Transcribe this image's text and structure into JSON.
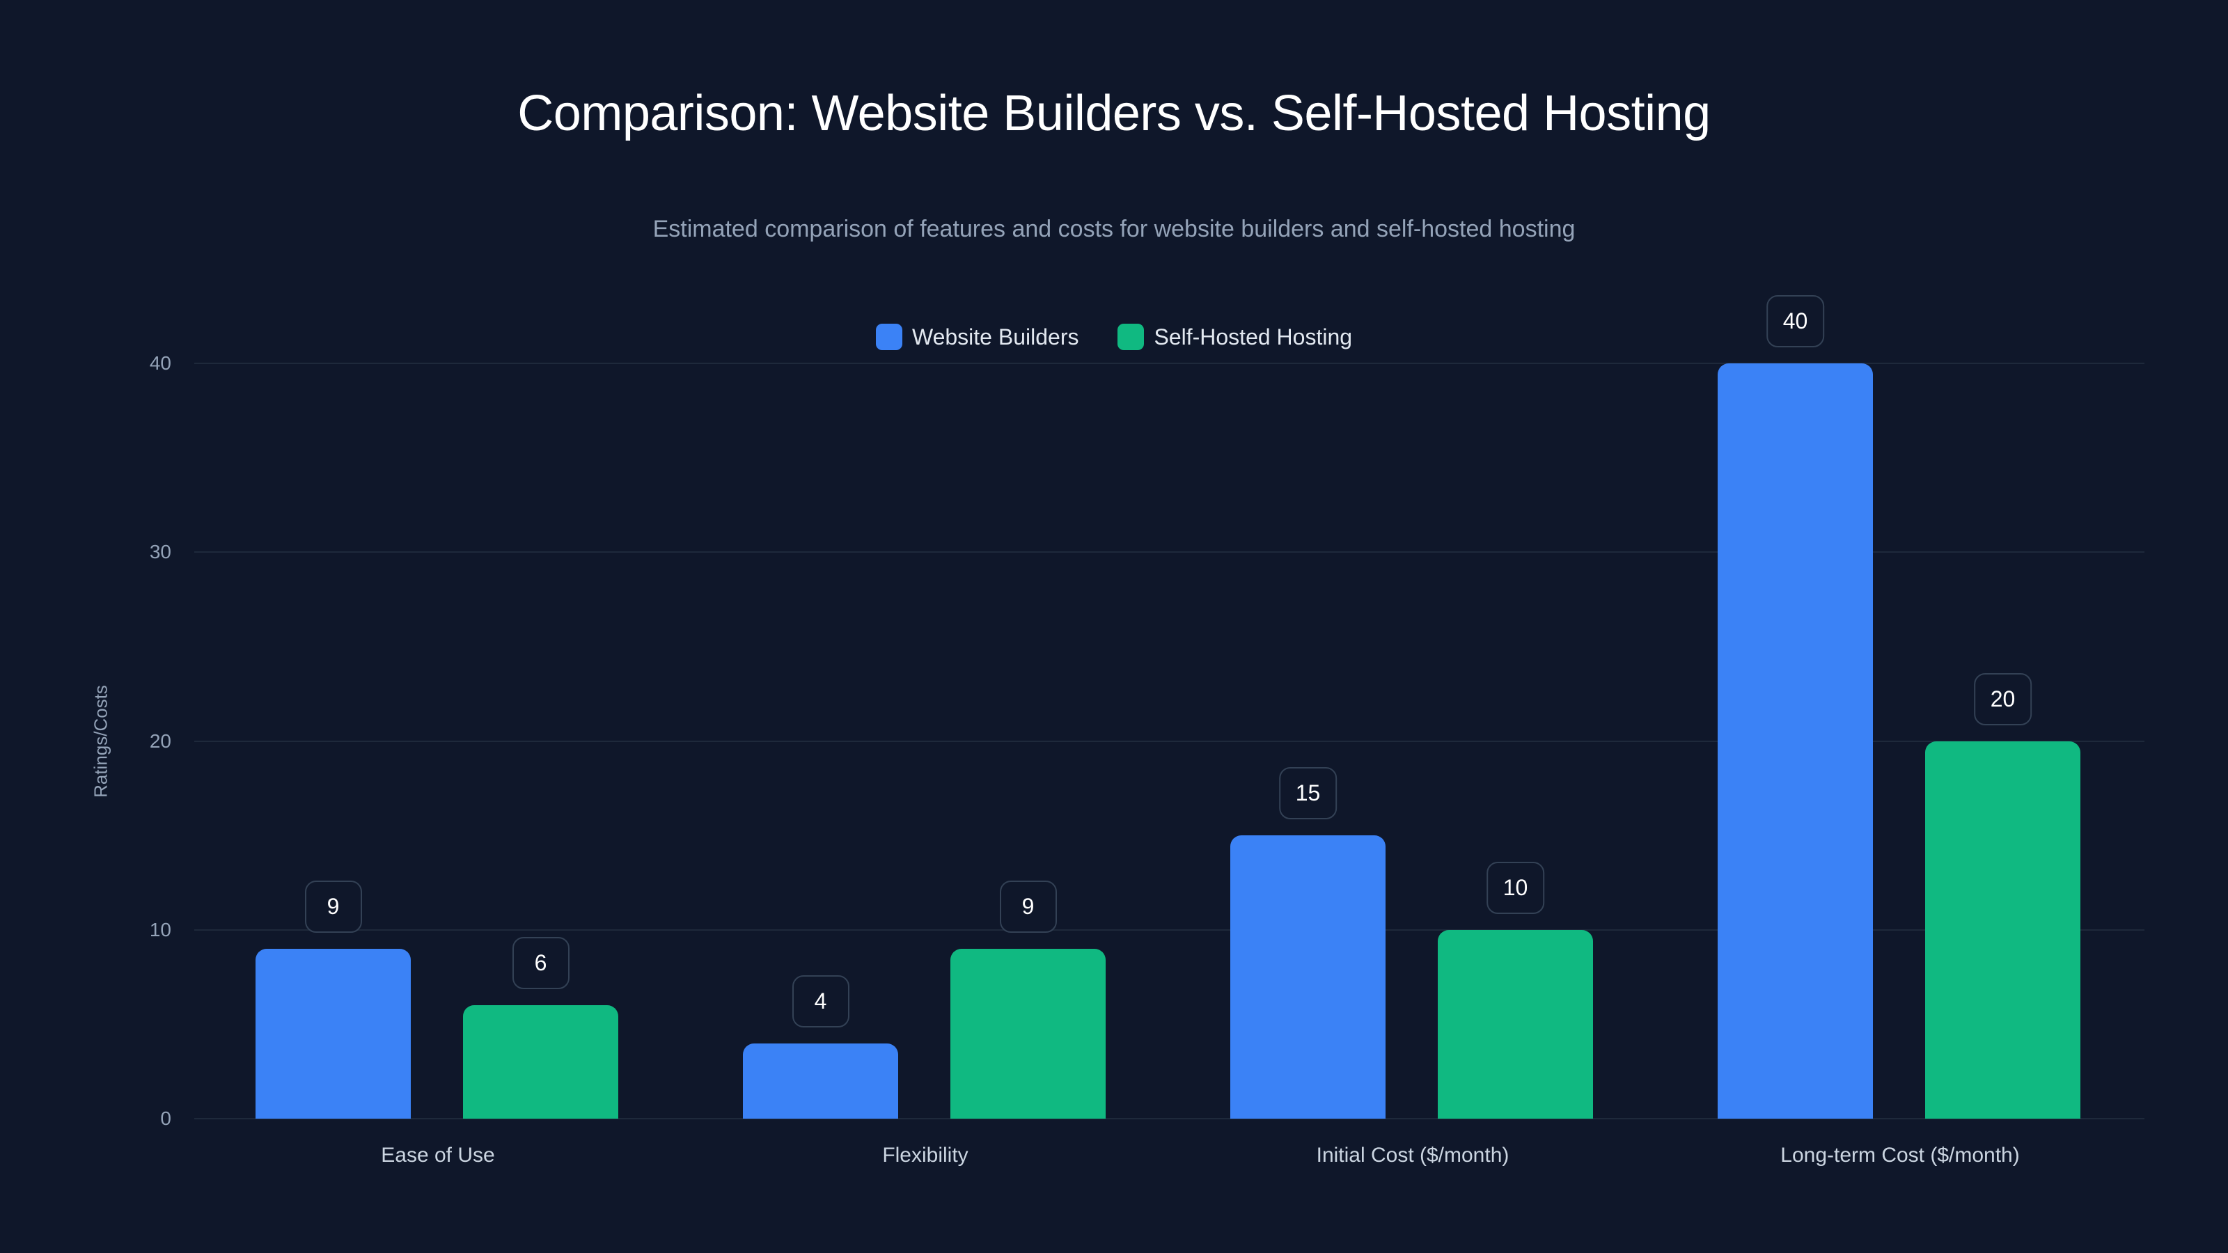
{
  "title": "Comparison: Website Builders vs. Self-Hosted Hosting",
  "subtitle": "Estimated comparison of features and costs for website builders and self-hosted hosting",
  "legend": [
    {
      "label": "Website Builders",
      "color": "#3b82f6"
    },
    {
      "label": "Self-Hosted Hosting",
      "color": "#10b981"
    }
  ],
  "colors": {
    "background": "#0f172a",
    "grid": "#1e293b",
    "series_1": "#3b82f6",
    "series_2": "#10b981"
  },
  "chart_data": {
    "type": "bar",
    "title": "Comparison: Website Builders vs. Self-Hosted Hosting",
    "subtitle": "Estimated comparison of features and costs for website builders and self-hosted hosting",
    "categories": [
      "Ease of Use",
      "Flexibility",
      "Initial Cost ($/month)",
      "Long-term Cost ($/month)"
    ],
    "series": [
      {
        "name": "Website Builders",
        "values": [
          9,
          4,
          15,
          40
        ],
        "color": "#3b82f6"
      },
      {
        "name": "Self-Hosted Hosting",
        "values": [
          6,
          9,
          10,
          20
        ],
        "color": "#10b981"
      }
    ],
    "xlabel": "",
    "ylabel": "Ratings/Costs",
    "ylim": [
      0,
      40
    ],
    "yticks": [
      0,
      10,
      20,
      30,
      40
    ],
    "grid": true,
    "legend_position": "top-center",
    "data_labels": true
  }
}
